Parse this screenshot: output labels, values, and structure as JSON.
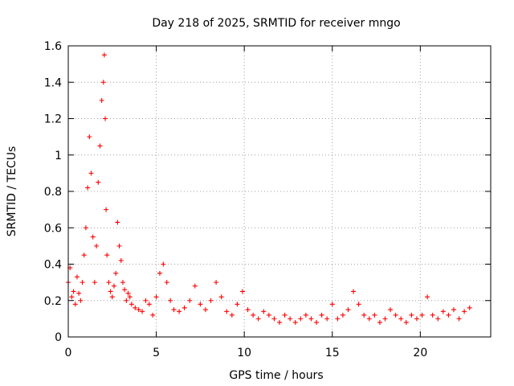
{
  "chart_data": {
    "type": "scatter",
    "title": "Day 218 of 2025, SRMTID for receiver mngo",
    "xlabel": "GPS time / hours",
    "ylabel": "SRMTID / TECUs",
    "xlim": [
      0,
      24
    ],
    "ylim": [
      0,
      1.6
    ],
    "xticks": [
      0,
      5,
      10,
      15,
      20
    ],
    "yticks": [
      0,
      0.2,
      0.4,
      0.6,
      0.8,
      1,
      1.2,
      1.4,
      1.6
    ],
    "xtick_labels": [
      "0",
      "5",
      "10",
      "15",
      "20"
    ],
    "ytick_labels": [
      "0",
      "0.2",
      "0.4",
      "0.6",
      "0.8",
      "1",
      "1.2",
      "1.4",
      "1.6"
    ],
    "grid": true,
    "marker": "+",
    "color": "#ff0000",
    "series": [
      {
        "name": "SRMTID",
        "x": [
          0.0,
          0.1,
          0.2,
          0.3,
          0.4,
          0.5,
          0.6,
          0.7,
          0.8,
          0.9,
          1.0,
          1.1,
          1.2,
          1.3,
          1.4,
          1.5,
          1.6,
          1.7,
          1.8,
          1.9,
          2.0,
          2.05,
          2.1,
          2.15,
          2.2,
          2.3,
          2.4,
          2.5,
          2.6,
          2.7,
          2.8,
          2.9,
          3.0,
          3.1,
          3.2,
          3.3,
          3.4,
          3.5,
          3.6,
          3.8,
          4.0,
          4.2,
          4.4,
          4.6,
          4.8,
          5.0,
          5.2,
          5.4,
          5.6,
          5.8,
          6.0,
          6.3,
          6.6,
          6.9,
          7.2,
          7.5,
          7.8,
          8.1,
          8.4,
          8.7,
          9.0,
          9.3,
          9.6,
          9.9,
          10.2,
          10.5,
          10.8,
          11.1,
          11.4,
          11.7,
          12.0,
          12.3,
          12.6,
          12.9,
          13.2,
          13.5,
          13.8,
          14.1,
          14.4,
          14.7,
          15.0,
          15.3,
          15.6,
          15.9,
          16.2,
          16.5,
          16.8,
          17.1,
          17.4,
          17.7,
          18.0,
          18.3,
          18.6,
          18.9,
          19.2,
          19.5,
          19.8,
          20.1,
          20.4,
          20.7,
          21.0,
          21.3,
          21.6,
          21.9,
          22.2,
          22.5,
          22.8
        ],
        "values": [
          0.3,
          0.38,
          0.22,
          0.25,
          0.18,
          0.33,
          0.24,
          0.2,
          0.3,
          0.45,
          0.6,
          0.82,
          1.1,
          0.9,
          0.55,
          0.3,
          0.5,
          0.85,
          1.05,
          1.3,
          1.4,
          1.55,
          1.2,
          0.7,
          0.45,
          0.3,
          0.25,
          0.22,
          0.28,
          0.35,
          0.63,
          0.5,
          0.42,
          0.3,
          0.26,
          0.2,
          0.24,
          0.22,
          0.18,
          0.16,
          0.15,
          0.14,
          0.2,
          0.18,
          0.12,
          0.22,
          0.35,
          0.4,
          0.3,
          0.2,
          0.15,
          0.14,
          0.16,
          0.2,
          0.28,
          0.18,
          0.15,
          0.2,
          0.3,
          0.22,
          0.14,
          0.12,
          0.18,
          0.25,
          0.15,
          0.12,
          0.1,
          0.14,
          0.12,
          0.1,
          0.08,
          0.12,
          0.1,
          0.08,
          0.1,
          0.12,
          0.1,
          0.08,
          0.12,
          0.1,
          0.18,
          0.1,
          0.12,
          0.15,
          0.25,
          0.18,
          0.12,
          0.1,
          0.12,
          0.08,
          0.1,
          0.15,
          0.12,
          0.1,
          0.08,
          0.12,
          0.1,
          0.12,
          0.22,
          0.12,
          0.1,
          0.14,
          0.12,
          0.15,
          0.1,
          0.14,
          0.16
        ]
      }
    ]
  }
}
